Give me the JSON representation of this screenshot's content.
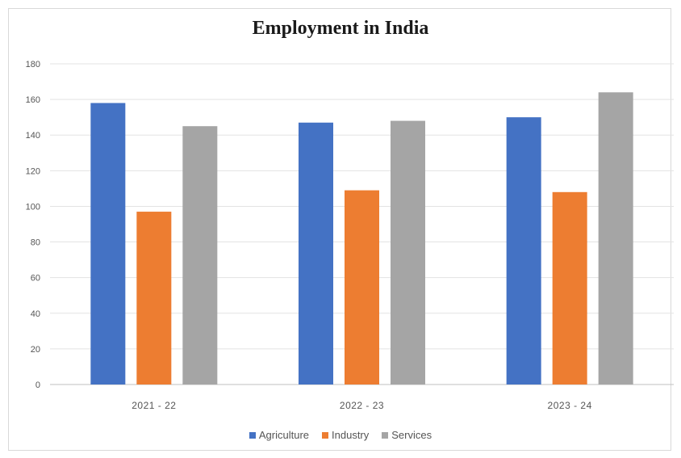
{
  "chart_data": {
    "type": "bar",
    "title": "Employment in India",
    "categories": [
      "2021 - 22",
      "2022 - 23",
      "2023 - 24"
    ],
    "series": [
      {
        "name": "Agriculture",
        "color": "#4472c4",
        "values": [
          158,
          147,
          150
        ]
      },
      {
        "name": "Industry",
        "color": "#ed7d31",
        "values": [
          97,
          109,
          108
        ]
      },
      {
        "name": "Services",
        "color": "#a5a5a5",
        "values": [
          145,
          148,
          164
        ]
      }
    ],
    "xlabel": "",
    "ylabel": "",
    "ylim": [
      0,
      180
    ],
    "yticks": [
      "0",
      "20",
      "40",
      "60",
      "80",
      "100",
      "120",
      "140",
      "160",
      "180"
    ],
    "grid": true,
    "legend_position": "bottom"
  }
}
